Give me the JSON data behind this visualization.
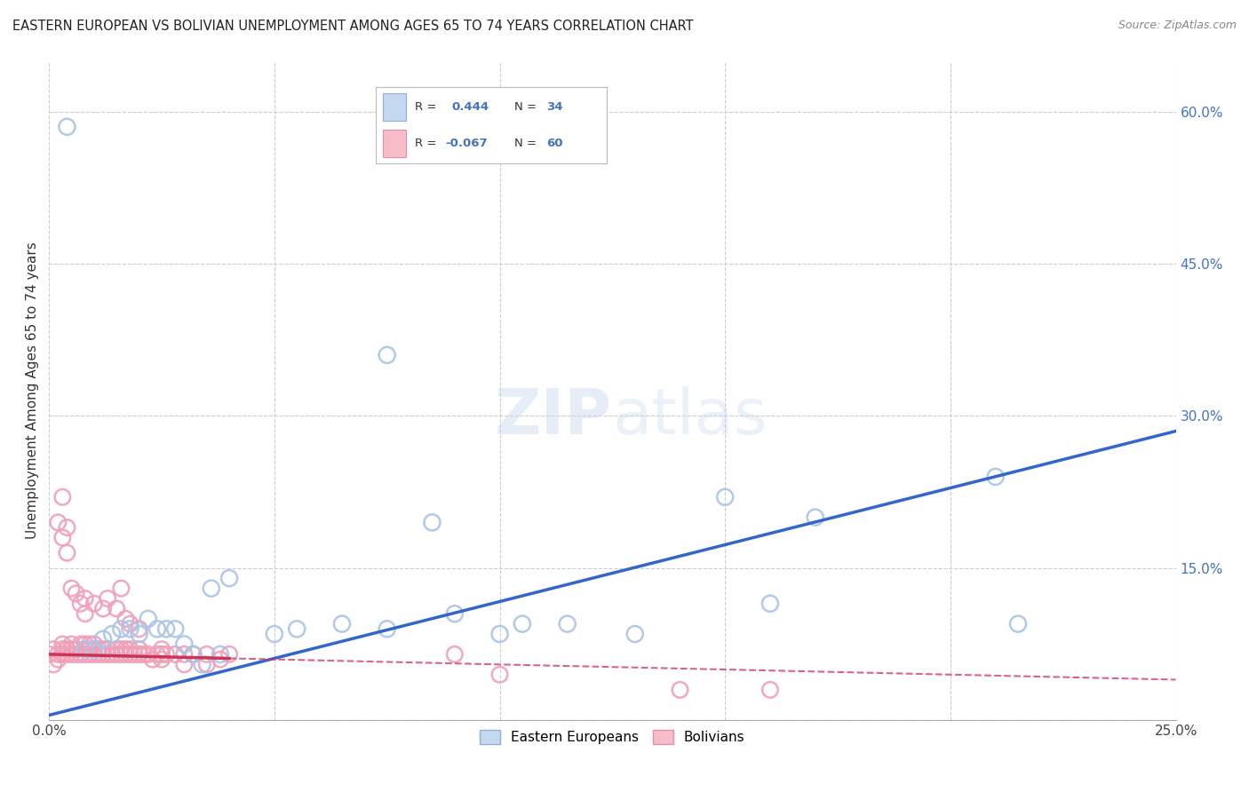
{
  "title": "EASTERN EUROPEAN VS BOLIVIAN UNEMPLOYMENT AMONG AGES 65 TO 74 YEARS CORRELATION CHART",
  "source": "Source: ZipAtlas.com",
  "ylabel": "Unemployment Among Ages 65 to 74 years",
  "xlim": [
    0.0,
    0.25
  ],
  "ylim": [
    0.0,
    0.65
  ],
  "yticks_right": [
    0.0,
    0.15,
    0.3,
    0.45,
    0.6
  ],
  "ytick_labels_right": [
    "",
    "15.0%",
    "30.0%",
    "45.0%",
    "60.0%"
  ],
  "r_eastern": 0.444,
  "n_eastern": 34,
  "r_bolivian": -0.067,
  "n_bolivian": 60,
  "eastern_color": "#aac4e8",
  "bolivian_color": "#f0a0b8",
  "trend_eastern_color": "#3366cc",
  "trend_bolivian_color": "#cc3355",
  "trend_eastern_x0": 0.0,
  "trend_eastern_y0": 0.005,
  "trend_eastern_x1": 0.25,
  "trend_eastern_y1": 0.285,
  "trend_bolivian_x0": 0.0,
  "trend_bolivian_y0": 0.065,
  "trend_bolivian_x1": 0.25,
  "trend_bolivian_y1": 0.04,
  "trend_bolivian_solid_end": 0.04,
  "watermark_text": "ZIPatlas",
  "eastern_x": [
    0.004,
    0.008,
    0.01,
    0.012,
    0.014,
    0.016,
    0.018,
    0.02,
    0.022,
    0.024,
    0.026,
    0.028,
    0.03,
    0.032,
    0.034,
    0.036,
    0.038,
    0.04,
    0.05,
    0.055,
    0.065,
    0.075,
    0.085,
    0.09,
    0.1,
    0.105,
    0.115,
    0.13,
    0.15,
    0.16,
    0.17,
    0.21,
    0.215,
    0.075
  ],
  "eastern_y": [
    0.585,
    0.07,
    0.07,
    0.08,
    0.085,
    0.09,
    0.09,
    0.085,
    0.1,
    0.09,
    0.09,
    0.09,
    0.075,
    0.065,
    0.055,
    0.13,
    0.065,
    0.14,
    0.085,
    0.09,
    0.095,
    0.09,
    0.195,
    0.105,
    0.085,
    0.095,
    0.095,
    0.085,
    0.22,
    0.115,
    0.2,
    0.24,
    0.095,
    0.36
  ],
  "bolivian_x": [
    0.0,
    0.001,
    0.001,
    0.002,
    0.002,
    0.003,
    0.003,
    0.003,
    0.004,
    0.004,
    0.005,
    0.005,
    0.005,
    0.006,
    0.006,
    0.007,
    0.007,
    0.008,
    0.008,
    0.008,
    0.009,
    0.009,
    0.009,
    0.01,
    0.01,
    0.01,
    0.011,
    0.011,
    0.012,
    0.012,
    0.013,
    0.013,
    0.014,
    0.015,
    0.015,
    0.016,
    0.016,
    0.017,
    0.017,
    0.018,
    0.018,
    0.019,
    0.02,
    0.02,
    0.021,
    0.022,
    0.023,
    0.024,
    0.025,
    0.026,
    0.028,
    0.03,
    0.032,
    0.035,
    0.038,
    0.04,
    0.14,
    0.16,
    0.003,
    0.004
  ],
  "bolivian_y": [
    0.065,
    0.07,
    0.055,
    0.065,
    0.06,
    0.065,
    0.07,
    0.075,
    0.065,
    0.07,
    0.065,
    0.07,
    0.075,
    0.065,
    0.07,
    0.065,
    0.075,
    0.065,
    0.07,
    0.075,
    0.065,
    0.075,
    0.07,
    0.065,
    0.07,
    0.075,
    0.07,
    0.065,
    0.065,
    0.07,
    0.065,
    0.07,
    0.065,
    0.065,
    0.07,
    0.065,
    0.07,
    0.065,
    0.07,
    0.065,
    0.07,
    0.065,
    0.065,
    0.07,
    0.065,
    0.065,
    0.06,
    0.065,
    0.065,
    0.065,
    0.065,
    0.065,
    0.065,
    0.065,
    0.06,
    0.065,
    0.03,
    0.03,
    0.22,
    0.19
  ],
  "bolivian_outlier_x": [
    0.002,
    0.003,
    0.004,
    0.005,
    0.006,
    0.007,
    0.008,
    0.008,
    0.01,
    0.012,
    0.013,
    0.015,
    0.016,
    0.017,
    0.018,
    0.02,
    0.025,
    0.025,
    0.03,
    0.035,
    0.09,
    0.1
  ],
  "bolivian_outlier_y": [
    0.195,
    0.18,
    0.165,
    0.13,
    0.125,
    0.115,
    0.12,
    0.105,
    0.115,
    0.11,
    0.12,
    0.11,
    0.13,
    0.1,
    0.095,
    0.09,
    0.07,
    0.06,
    0.055,
    0.055,
    0.065,
    0.045
  ]
}
